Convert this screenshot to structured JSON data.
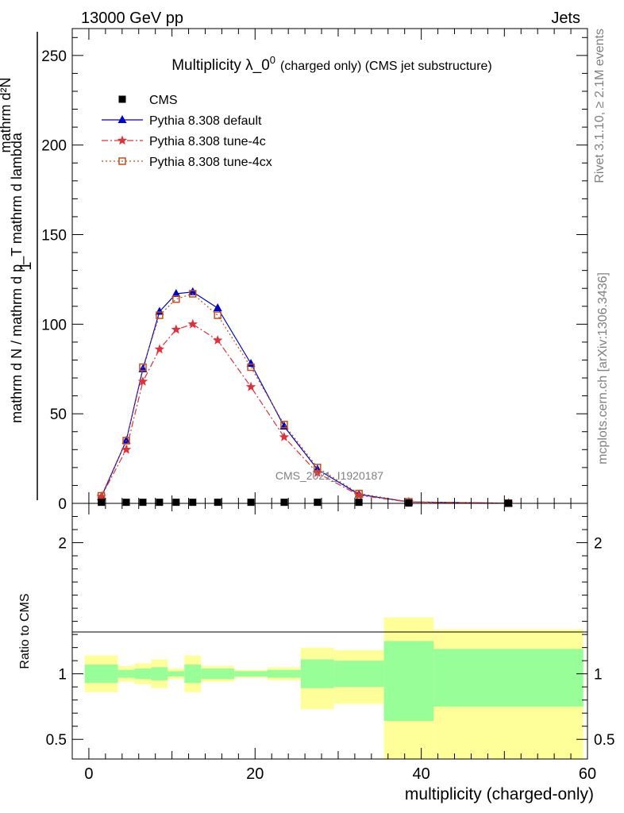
{
  "header": {
    "energy": "13000 GeV pp",
    "category": "Jets"
  },
  "side_labels": {
    "rivet": "Rivet 3.1.10, ≥ 2.1M events",
    "mcplots": "mcplots.cern.ch [arXiv:1306.3436]"
  },
  "watermark": "CMS_2021_I1920187",
  "chart_data": [
    {
      "type": "line",
      "title": "Multiplicity λ_0",
      "title_sup": "0",
      "title_suffix": "(charged only) (CMS jet substructure)",
      "ylabel": "mathrm d N / mathrm d p_T mathrm d lambda",
      "ylabel_prefix": "1",
      "ylabel_top": "mathrm d²N",
      "ylim": [
        0,
        265
      ],
      "y_ticks": [
        "0",
        "50",
        "100",
        "150",
        "200",
        "250"
      ],
      "x_ticks": [
        "0",
        "20",
        "40",
        "60"
      ],
      "xlim": [
        -2,
        60
      ],
      "legend_position": "top-left",
      "series": [
        {
          "name": "CMS",
          "marker": "square",
          "color": "#000000",
          "x": [
            1.5,
            4.5,
            6.5,
            8.5,
            10.5,
            12.5,
            15.5,
            19.5,
            23.5,
            27.5,
            32.5,
            38.5,
            50.5
          ],
          "values": [
            0.6,
            0.6,
            0.6,
            0.6,
            0.6,
            0.6,
            0.6,
            0.6,
            0.6,
            0.6,
            0.6,
            0.2,
            0.05
          ]
        },
        {
          "name": "Pythia 8.308 default",
          "marker": "triangle",
          "color": "#0000cc",
          "dash": "",
          "x": [
            1.5,
            4.5,
            6.5,
            8.5,
            10.5,
            12.5,
            15.5,
            19.5,
            23.5,
            27.5,
            32.5,
            38.5,
            50.5
          ],
          "values": [
            3.5,
            35,
            75,
            107,
            117,
            118,
            109,
            78,
            43,
            19,
            5,
            0.8,
            0.1
          ]
        },
        {
          "name": "Pythia 8.308 tune-4c",
          "marker": "star",
          "color": "#e0303a",
          "dash": "8,3,2,3",
          "x": [
            1.5,
            4.5,
            6.5,
            8.5,
            10.5,
            12.5,
            15.5,
            19.5,
            23.5,
            27.5,
            32.5,
            38.5,
            50.5
          ],
          "values": [
            3.8,
            30,
            68,
            86,
            97,
            100,
            91,
            65,
            37,
            17,
            4.5,
            0.7,
            0.1
          ]
        },
        {
          "name": "Pythia 8.308 tune-4cx",
          "marker": "open-square",
          "color": "#c0501a",
          "dash": "2,3",
          "x": [
            1.5,
            4.5,
            6.5,
            8.5,
            10.5,
            12.5,
            15.5,
            19.5,
            23.5,
            27.5,
            32.5,
            38.5,
            50.5
          ],
          "values": [
            4.2,
            35,
            76,
            105,
            114,
            117,
            105,
            76,
            44,
            20,
            5.5,
            0.9,
            0.1
          ]
        }
      ]
    },
    {
      "type": "area",
      "ylabel": "Ratio to CMS",
      "ylim": [
        0.35,
        2.3
      ],
      "y_ticks": [
        "0.5",
        "1",
        "2"
      ],
      "y_tick_values": [
        0.5,
        1,
        2
      ],
      "xlabel": "multiplicity (charged-only)",
      "bins": [
        {
          "x0": -0.5,
          "x1": 3.5,
          "stat_lo": 0.93,
          "stat_hi": 1.07,
          "tot_lo": 0.86,
          "tot_hi": 1.14
        },
        {
          "x0": 3.5,
          "x1": 5.5,
          "stat_lo": 0.97,
          "stat_hi": 1.03,
          "tot_lo": 0.94,
          "tot_hi": 1.06
        },
        {
          "x0": 5.5,
          "x1": 7.5,
          "stat_lo": 0.96,
          "stat_hi": 1.04,
          "tot_lo": 0.92,
          "tot_hi": 1.08
        },
        {
          "x0": 7.5,
          "x1": 9.5,
          "stat_lo": 0.95,
          "stat_hi": 1.05,
          "tot_lo": 0.89,
          "tot_hi": 1.11
        },
        {
          "x0": 9.5,
          "x1": 11.5,
          "stat_lo": 0.98,
          "stat_hi": 1.02,
          "tot_lo": 0.96,
          "tot_hi": 1.04
        },
        {
          "x0": 11.5,
          "x1": 13.5,
          "stat_lo": 0.93,
          "stat_hi": 1.07,
          "tot_lo": 0.86,
          "tot_hi": 1.14
        },
        {
          "x0": 13.5,
          "x1": 17.5,
          "stat_lo": 0.96,
          "stat_hi": 1.04,
          "tot_lo": 0.94,
          "tot_hi": 1.06
        },
        {
          "x0": 17.5,
          "x1": 21.5,
          "stat_lo": 0.98,
          "stat_hi": 1.02,
          "tot_lo": 0.97,
          "tot_hi": 1.03
        },
        {
          "x0": 21.5,
          "x1": 25.5,
          "stat_lo": 0.97,
          "stat_hi": 1.03,
          "tot_lo": 0.95,
          "tot_hi": 1.05
        },
        {
          "x0": 25.5,
          "x1": 29.5,
          "stat_lo": 0.89,
          "stat_hi": 1.11,
          "tot_lo": 0.73,
          "tot_hi": 1.2
        },
        {
          "x0": 29.5,
          "x1": 35.5,
          "stat_lo": 0.9,
          "stat_hi": 1.1,
          "tot_lo": 0.77,
          "tot_hi": 1.18
        },
        {
          "x0": 35.5,
          "x1": 41.5,
          "stat_lo": 0.64,
          "stat_hi": 1.25,
          "tot_lo": 0.35,
          "tot_hi": 1.43
        },
        {
          "x0": 41.5,
          "x1": 59.5,
          "stat_lo": 0.75,
          "stat_hi": 1.19,
          "tot_lo": 0.35,
          "tot_hi": 1.34
        }
      ],
      "colors": {
        "stat": "#98ff98",
        "total": "#ffff9a"
      }
    }
  ]
}
